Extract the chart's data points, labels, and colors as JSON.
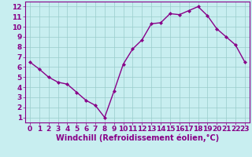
{
  "x": [
    0,
    1,
    2,
    3,
    4,
    5,
    6,
    7,
    8,
    9,
    10,
    11,
    12,
    13,
    14,
    15,
    16,
    17,
    18,
    19,
    20,
    21,
    22,
    23
  ],
  "y": [
    6.5,
    5.8,
    5.0,
    4.5,
    4.3,
    3.5,
    2.7,
    2.2,
    1.0,
    3.6,
    6.3,
    7.8,
    8.7,
    10.3,
    10.4,
    11.3,
    11.2,
    11.6,
    12.0,
    11.1,
    9.8,
    9.0,
    8.2,
    6.5
  ],
  "xlabel": "Windchill (Refroidissement éolien,°C)",
  "xlim": [
    -0.5,
    23.5
  ],
  "ylim": [
    0.5,
    12.5
  ],
  "xticks": [
    0,
    1,
    2,
    3,
    4,
    5,
    6,
    7,
    8,
    9,
    10,
    11,
    12,
    13,
    14,
    15,
    16,
    17,
    18,
    19,
    20,
    21,
    22,
    23
  ],
  "yticks": [
    1,
    2,
    3,
    4,
    5,
    6,
    7,
    8,
    9,
    10,
    11,
    12
  ],
  "line_color": "#880088",
  "marker_color": "#880088",
  "bg_color": "#c8eef0",
  "grid_color": "#99cccc",
  "xlabel_fontsize": 7,
  "tick_fontsize": 6.5
}
